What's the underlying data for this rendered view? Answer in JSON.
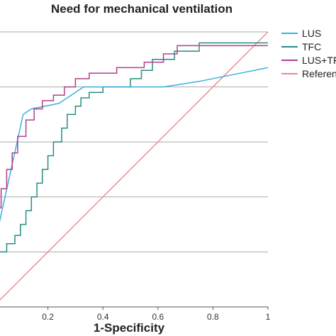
{
  "chart_data": {
    "type": "line",
    "title": "Need for mechanical ventilation",
    "xlabel": "1-Specificity",
    "ylabel": "",
    "xlim": [
      0,
      1
    ],
    "ylim": [
      0,
      1
    ],
    "x_ticks": [
      0.2,
      0.4,
      0.6,
      0.8,
      1
    ],
    "x_tick_labels": [
      "0.2",
      "0.4",
      "0.6",
      "0.8",
      "1"
    ],
    "y_gridlines": [
      0.2,
      0.4,
      0.6,
      0.8,
      1
    ],
    "grid": "horizontal",
    "legend_position": "top-right",
    "series": [
      {
        "name": "LUS",
        "color": "#3ab0e0",
        "x": [
          0,
          0.11,
          0.14,
          0.24,
          0.33,
          0.62,
          0.75,
          0.9,
          1
        ],
        "y": [
          0.2,
          0.7,
          0.72,
          0.74,
          0.8,
          0.8,
          0.82,
          0.85,
          0.87
        ]
      },
      {
        "name": "TFC",
        "color": "#2a8a84",
        "x": [
          0,
          0.05,
          0.05,
          0.08,
          0.08,
          0.1,
          0.1,
          0.12,
          0.12,
          0.14,
          0.14,
          0.16,
          0.16,
          0.18,
          0.18,
          0.2,
          0.2,
          0.22,
          0.22,
          0.25,
          0.25,
          0.27,
          0.27,
          0.3,
          0.3,
          0.32,
          0.32,
          0.35,
          0.35,
          0.4,
          0.4,
          0.5,
          0.5,
          0.54,
          0.54,
          0.58,
          0.58,
          0.66,
          0.66,
          0.75,
          0.75,
          1
        ],
        "y": [
          0.2,
          0.2,
          0.23,
          0.23,
          0.26,
          0.26,
          0.3,
          0.3,
          0.35,
          0.35,
          0.4,
          0.4,
          0.45,
          0.45,
          0.5,
          0.5,
          0.55,
          0.55,
          0.6,
          0.6,
          0.65,
          0.65,
          0.7,
          0.7,
          0.73,
          0.73,
          0.76,
          0.76,
          0.78,
          0.78,
          0.8,
          0.8,
          0.83,
          0.83,
          0.86,
          0.86,
          0.9,
          0.9,
          0.93,
          0.93,
          0.96,
          0.96
        ]
      },
      {
        "name": "LUS+TFC",
        "color": "#b0408a",
        "x": [
          0,
          0.01,
          0.01,
          0.03,
          0.03,
          0.05,
          0.05,
          0.07,
          0.07,
          0.09,
          0.09,
          0.12,
          0.12,
          0.15,
          0.15,
          0.18,
          0.18,
          0.22,
          0.22,
          0.26,
          0.26,
          0.3,
          0.3,
          0.35,
          0.35,
          0.45,
          0.45,
          0.55,
          0.55,
          0.62,
          0.62,
          0.67,
          0.67,
          1
        ],
        "y": [
          0.3,
          0.3,
          0.36,
          0.36,
          0.43,
          0.43,
          0.5,
          0.5,
          0.56,
          0.56,
          0.62,
          0.62,
          0.68,
          0.68,
          0.72,
          0.72,
          0.75,
          0.75,
          0.77,
          0.77,
          0.8,
          0.8,
          0.83,
          0.83,
          0.85,
          0.85,
          0.87,
          0.87,
          0.89,
          0.89,
          0.92,
          0.92,
          0.95,
          0.95
        ]
      },
      {
        "name": "Reference line",
        "color": "#ef8a8a",
        "x": [
          0,
          1
        ],
        "y": [
          0,
          1
        ]
      }
    ]
  }
}
